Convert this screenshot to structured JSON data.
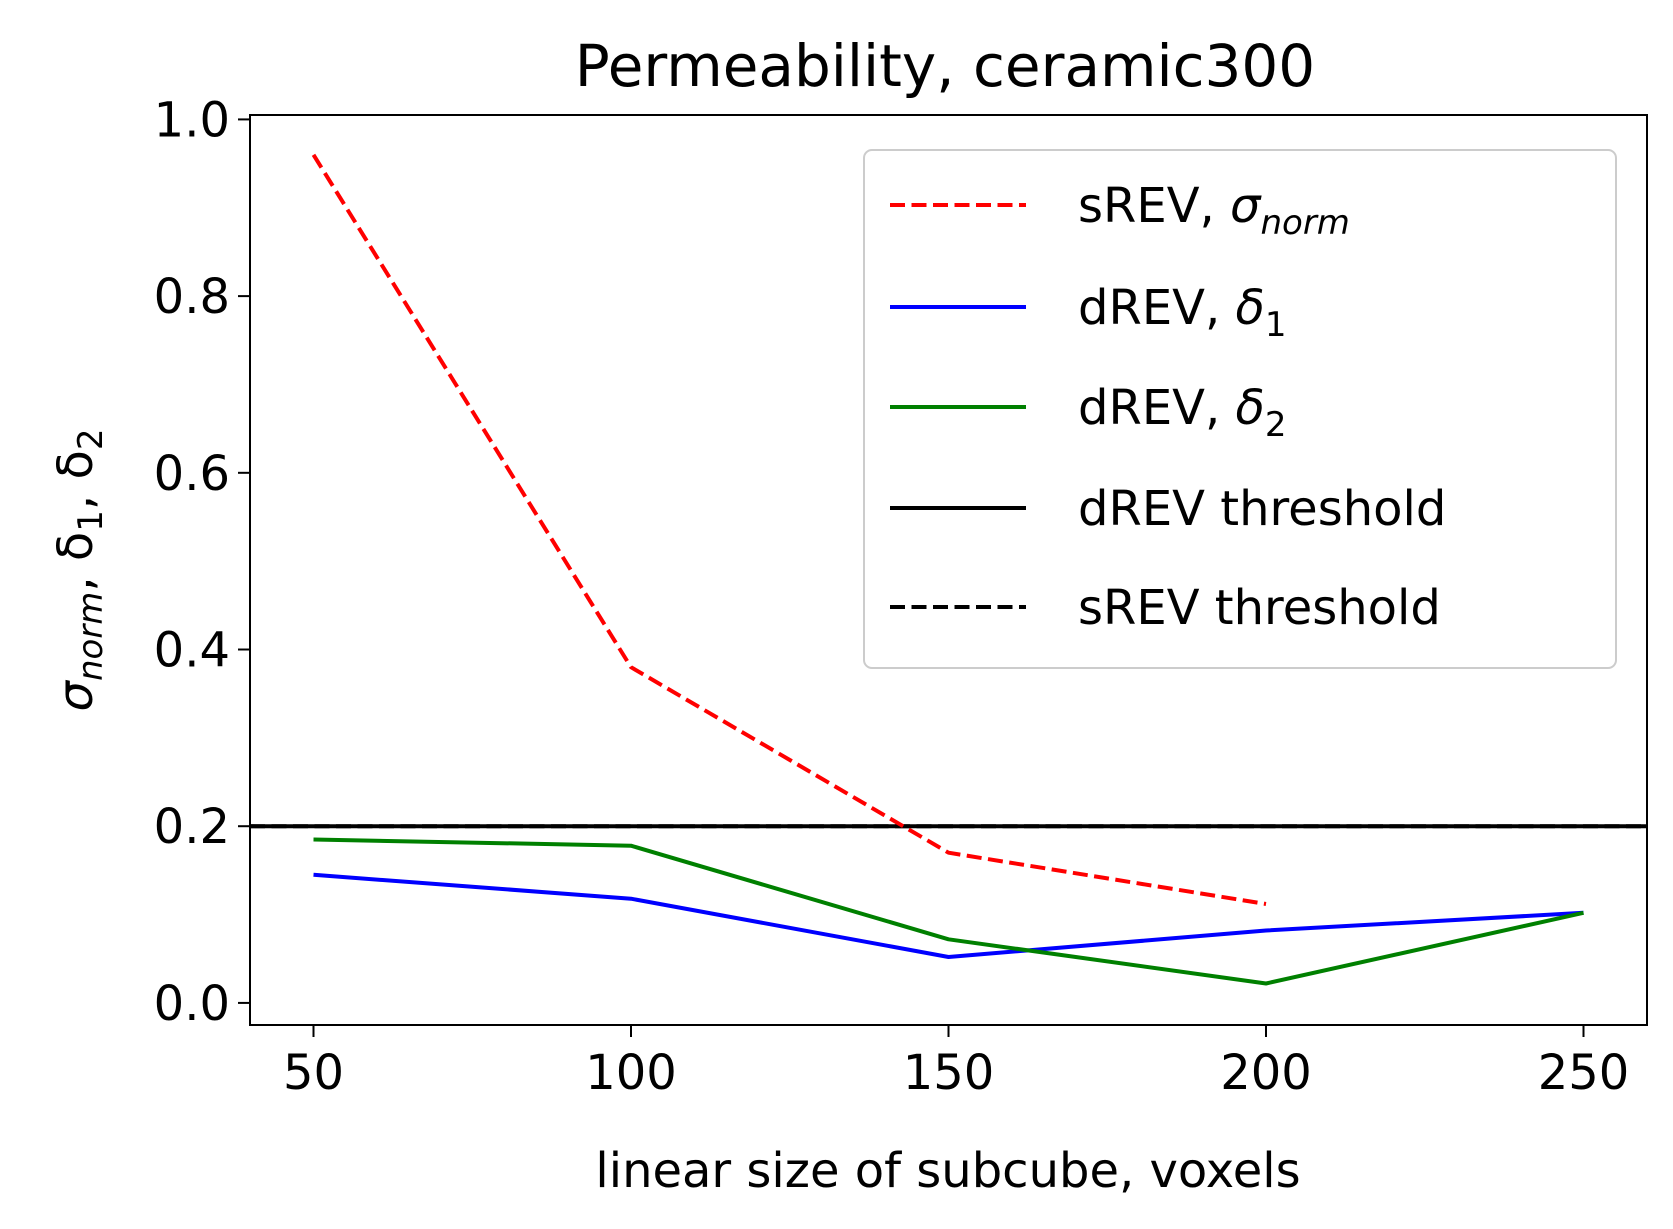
{
  "chart_data": {
    "type": "line",
    "title": "Permeability, ceramic300",
    "xlabel": "linear size of subcube, voxels",
    "ylabel": {
      "main": "σ",
      "sub1": "norm",
      "sep1": ", δ",
      "sub2": "1",
      "sep2": ", δ",
      "sub3": "2"
    },
    "xlim": [
      40,
      260
    ],
    "ylim": [
      -0.025,
      1.005
    ],
    "xticks": [
      50,
      100,
      150,
      200,
      250
    ],
    "xtick_labels": [
      "50",
      "100",
      "150",
      "200",
      "250"
    ],
    "yticks": [
      0.0,
      0.2,
      0.4,
      0.6,
      0.8,
      1.0
    ],
    "ytick_labels": [
      "0.0",
      "0.2",
      "0.4",
      "0.6",
      "0.8",
      "1.0"
    ],
    "grid": false,
    "legend_position": "top-right",
    "series": [
      {
        "key": "srev_sigma",
        "label_main": "sREV, ",
        "label_sym": "σ",
        "label_sub": "norm",
        "color": "#ff0000",
        "dashed": true,
        "x": [
          50,
          100,
          150,
          200
        ],
        "y": [
          0.96,
          0.38,
          0.17,
          0.112
        ]
      },
      {
        "key": "drev_delta1",
        "label_main": "dREV, ",
        "label_sym": "δ",
        "label_sub": "1",
        "color": "#0000ff",
        "dashed": false,
        "x": [
          50,
          100,
          150,
          200,
          250
        ],
        "y": [
          0.145,
          0.118,
          0.052,
          0.082,
          0.102
        ]
      },
      {
        "key": "drev_delta2",
        "label_main": "dREV, ",
        "label_sym": "δ",
        "label_sub": "2",
        "color": "#008000",
        "dashed": false,
        "x": [
          50,
          100,
          150,
          200,
          250
        ],
        "y": [
          0.185,
          0.178,
          0.072,
          0.022,
          0.102
        ]
      }
    ],
    "thresholds": [
      {
        "key": "drev_threshold",
        "label": "dREV threshold",
        "color": "#000000",
        "dashed": false,
        "y": 0.2
      },
      {
        "key": "srev_threshold",
        "label": "sREV threshold",
        "color": "#000000",
        "dashed": true,
        "y": 0.2
      }
    ]
  }
}
